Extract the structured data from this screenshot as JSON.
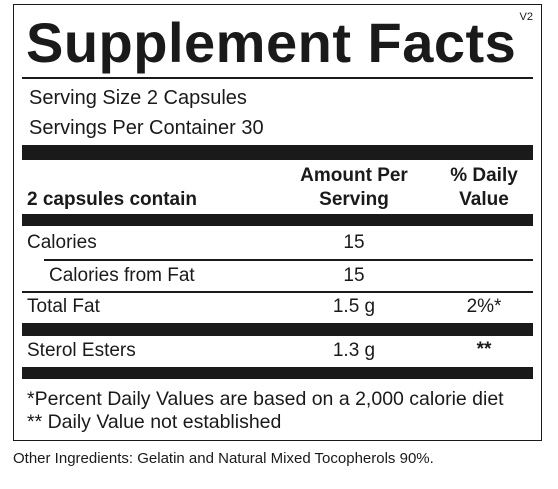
{
  "version": "V2",
  "title": "Supplement Facts",
  "serving_size": "Serving Size 2 Capsules",
  "servings_per_container": "Servings Per Container 30",
  "header": {
    "contain_label": "2 capsules contain",
    "amount_line1": "Amount Per",
    "amount_line2": "Serving",
    "dv_line1": "% Daily",
    "dv_line2": "Value"
  },
  "rows": [
    {
      "name": "Calories",
      "amount": "15",
      "dv": ""
    },
    {
      "name": "Calories from Fat",
      "amount": "15",
      "dv": ""
    },
    {
      "name": "Total Fat",
      "amount": "1.5 g",
      "dv": "2%*"
    },
    {
      "name": "Sterol Esters",
      "amount": "1.3 g",
      "dv": "**"
    }
  ],
  "footnotes": [
    "*Percent Daily Values are based on a 2,000 calorie diet",
    "** Daily Value not established"
  ],
  "other_ingredients": "Other Ingredients: Gelatin and Natural Mixed Tocopherols 90%."
}
